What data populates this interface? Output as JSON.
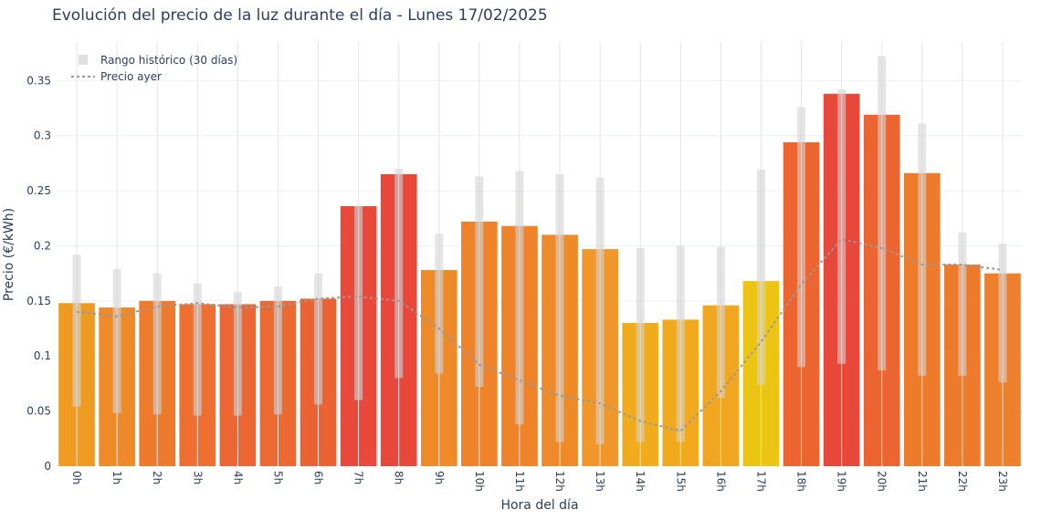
{
  "chart_data": {
    "type": "bar",
    "title": "Evolución del precio de la luz durante el día - Lunes 17/02/2025",
    "xlabel": "Hora del día",
    "ylabel": "Precio (€/kWh)",
    "ylim": [
      0,
      0.39
    ],
    "yticks": [
      0,
      0.05,
      0.1,
      0.15,
      0.2,
      0.25,
      0.3,
      0.35
    ],
    "ytick_labels": [
      "0",
      "0.05",
      "0.1",
      "0.15",
      "0.2",
      "0.25",
      "0.3",
      "0.35"
    ],
    "categories": [
      "0h",
      "1h",
      "2h",
      "3h",
      "4h",
      "5h",
      "6h",
      "7h",
      "8h",
      "9h",
      "10h",
      "11h",
      "12h",
      "13h",
      "14h",
      "15h",
      "16h",
      "17h",
      "18h",
      "19h",
      "20h",
      "21h",
      "22h",
      "23h"
    ],
    "series": [
      {
        "type": "bar",
        "values": [
          0.148,
          0.144,
          0.15,
          0.147,
          0.147,
          0.15,
          0.152,
          0.236,
          0.265,
          0.178,
          0.222,
          0.218,
          0.21,
          0.197,
          0.13,
          0.133,
          0.146,
          0.168,
          0.294,
          0.338,
          0.319,
          0.266,
          0.183,
          0.175
        ],
        "colors": [
          "#ef9b22",
          "#ef8a29",
          "#ee7a2c",
          "#ee6f30",
          "#ec6633",
          "#ec6a32",
          "#eb6233",
          "#e8493a",
          "#e8473a",
          "#ee8a28",
          "#ee8329",
          "#ef8329",
          "#ef8a28",
          "#f0962a",
          "#f1ac1d",
          "#f1aa1e",
          "#f0a620",
          "#ecc414",
          "#ec6531",
          "#e8483a",
          "#ec6530",
          "#ee7a2c",
          "#ee7a2c",
          "#ee7f2c"
        ]
      },
      {
        "name": "Rango histórico (30 días)",
        "type": "range",
        "low": [
          0.054,
          0.048,
          0.047,
          0.046,
          0.046,
          0.047,
          0.056,
          0.06,
          0.08,
          0.084,
          0.072,
          0.038,
          0.022,
          0.02,
          0.022,
          0.022,
          0.062,
          0.074,
          0.09,
          0.093,
          0.087,
          0.082,
          0.082,
          0.076
        ],
        "high": [
          0.192,
          0.179,
          0.175,
          0.166,
          0.158,
          0.163,
          0.175,
          0.236,
          0.27,
          0.211,
          0.263,
          0.268,
          0.265,
          0.262,
          0.198,
          0.2,
          0.199,
          0.269,
          0.326,
          0.342,
          0.372,
          0.311,
          0.212,
          0.202
        ],
        "color": "#d3d3d3"
      },
      {
        "name": "Precio ayer",
        "type": "line",
        "values": [
          0.14,
          0.136,
          0.145,
          0.148,
          0.144,
          0.145,
          0.152,
          0.154,
          0.15,
          0.125,
          0.092,
          0.078,
          0.064,
          0.057,
          0.041,
          0.032,
          0.068,
          0.113,
          0.165,
          0.206,
          0.198,
          0.183,
          0.183,
          0.178
        ],
        "color": "#999999"
      }
    ],
    "legend": "top-left",
    "grid": true
  }
}
